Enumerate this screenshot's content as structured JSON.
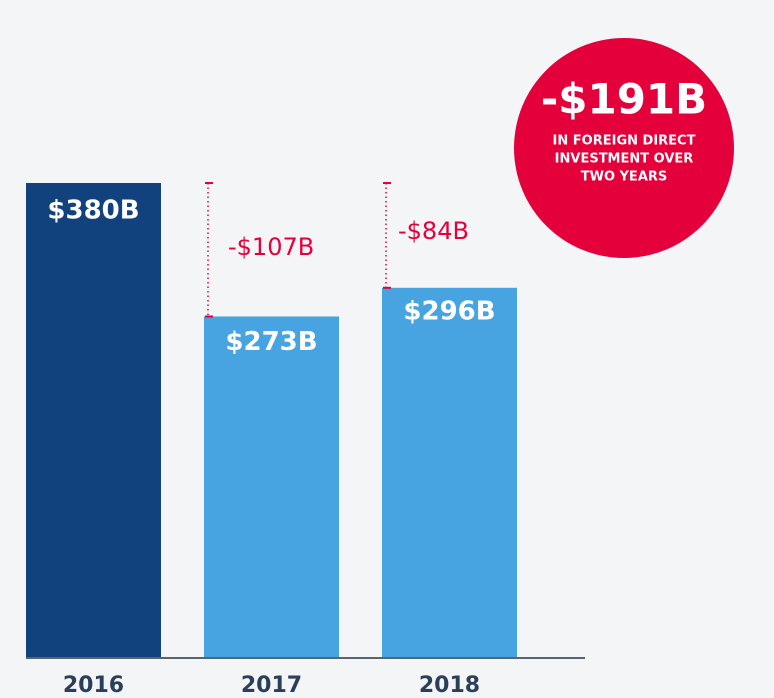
{
  "chart_data": {
    "type": "bar",
    "categories": [
      "2016",
      "2017",
      "2018"
    ],
    "values": [
      380,
      273,
      296
    ],
    "value_labels": [
      "$380B",
      "$273B",
      "$296B"
    ],
    "colors": [
      "#12427e",
      "#47a4e0",
      "#47a4e0"
    ],
    "ylim": [
      0,
      380
    ],
    "changes": [
      null,
      -107,
      -84
    ],
    "change_labels": [
      null,
      "-$107B",
      "-$84B"
    ],
    "change_color": "#e4003b",
    "callout": {
      "value": -191,
      "value_label": "-$191B",
      "text": [
        "IN FOREIGN DIRECT",
        "INVESTMENT OVER",
        "TWO YEARS"
      ],
      "color": "#e4003b"
    }
  }
}
